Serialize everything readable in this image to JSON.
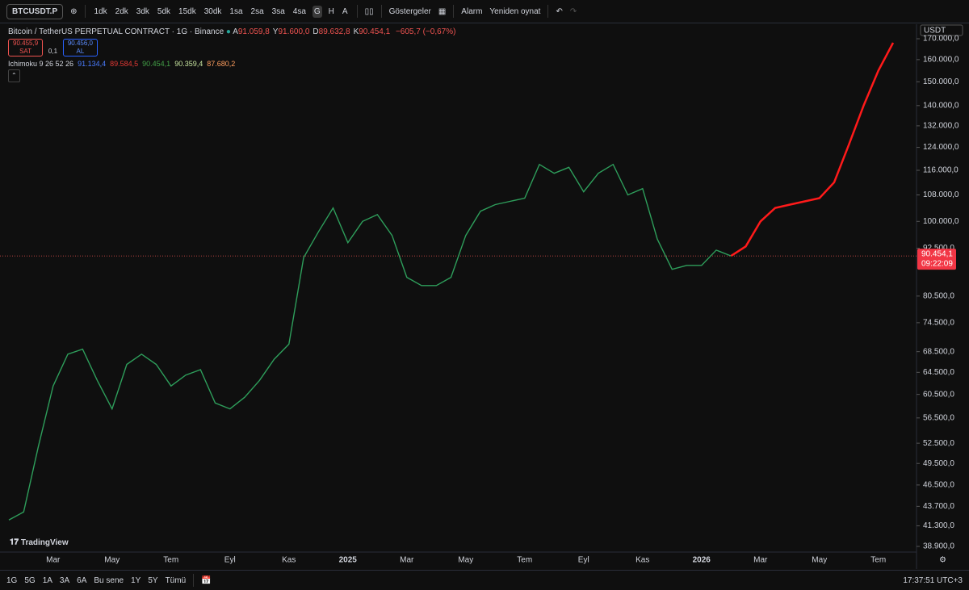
{
  "header": {
    "symbol": "BTCUSDT.P",
    "timeframes": [
      "1dk",
      "2dk",
      "3dk",
      "5dk",
      "15dk",
      "30dk",
      "1sa",
      "2sa",
      "3sa",
      "4sa",
      "G",
      "H",
      "A"
    ],
    "active_timeframe": "G",
    "indicators": "Göstergeler",
    "alarm": "Alarm",
    "replay": "Yeniden oynat"
  },
  "legend": {
    "title": "Bitcoin / TetherUS PERPETUAL CONTRACT · 1G · Binance",
    "ohlc": [
      {
        "label": "A",
        "value": "91.059,8"
      },
      {
        "label": "Y",
        "value": "91.600,0"
      },
      {
        "label": "D",
        "value": "89.632,8"
      },
      {
        "label": "K",
        "value": "90.454,1"
      }
    ],
    "change": "−605,7 (−0,67%)",
    "sell": {
      "price": "90.455,9",
      "label": "SAT"
    },
    "spread": "0,1",
    "buy": {
      "price": "90.456,0",
      "label": "AL"
    },
    "ichimoku": {
      "label": "Ichimoku 9 26 52 26",
      "values": [
        "91.134,4",
        "89.584,5",
        "90.454,1",
        "90.359,4",
        "87.680,2"
      ],
      "colors": [
        "#4a7cff",
        "#e53935",
        "#43a047",
        "#c8e6a0",
        "#ff9e5e"
      ]
    }
  },
  "price_axis": {
    "currency": "USDT",
    "last_price": "90.454,1",
    "countdown": "09:22:09"
  },
  "chart_data": {
    "type": "line",
    "log_scale": true,
    "grid": false,
    "ylim": [
      38900,
      170000
    ],
    "yticks": [
      {
        "value": 38900,
        "label": "38.900,0"
      },
      {
        "value": 41300,
        "label": "41.300,0"
      },
      {
        "value": 43700,
        "label": "43.700,0"
      },
      {
        "value": 46500,
        "label": "46.500,0"
      },
      {
        "value": 49500,
        "label": "49.500,0"
      },
      {
        "value": 52500,
        "label": "52.500,0"
      },
      {
        "value": 56500,
        "label": "56.500,0"
      },
      {
        "value": 60500,
        "label": "60.500,0"
      },
      {
        "value": 64500,
        "label": "64.500,0"
      },
      {
        "value": 68500,
        "label": "68.500,0"
      },
      {
        "value": 74500,
        "label": "74.500,0"
      },
      {
        "value": 80500,
        "label": "80.500,0"
      },
      {
        "value": 92500,
        "label": "92.500,0"
      },
      {
        "value": 100000,
        "label": "100.000,0"
      },
      {
        "value": 108000,
        "label": "108.000,0"
      },
      {
        "value": 116000,
        "label": "116.000,0"
      },
      {
        "value": 124000,
        "label": "124.000,0"
      },
      {
        "value": 132000,
        "label": "132.000,0"
      },
      {
        "value": 140000,
        "label": "140.000,0"
      },
      {
        "value": 150000,
        "label": "150.000,0"
      },
      {
        "value": 160000,
        "label": "160.000,0"
      },
      {
        "value": 170000,
        "label": "170.000,0"
      }
    ],
    "last_value": 90454.1,
    "categories": [
      null,
      null,
      null,
      "Mar",
      null,
      null,
      null,
      "May",
      null,
      null,
      null,
      "Tem",
      null,
      null,
      null,
      "Eyl",
      null,
      null,
      null,
      "Kas",
      null,
      null,
      null,
      "2025",
      null,
      null,
      null,
      "Mar",
      null,
      null,
      null,
      "May",
      null,
      null,
      null,
      "Tem",
      null,
      null,
      null,
      "Eyl",
      null,
      null,
      null,
      "Kas",
      null,
      null,
      null,
      "2026",
      null,
      null,
      null,
      "Mar",
      null,
      null,
      null,
      "May",
      null,
      null,
      null,
      "Tem",
      null
    ],
    "series": [
      {
        "color": "#2e9e5b",
        "values": [
          42000,
          43000,
          52000,
          62000,
          68000,
          69000,
          63000,
          58000,
          66000,
          68000,
          66000,
          62000,
          64000,
          65000,
          59000,
          58000,
          60000,
          63000,
          67000,
          70000,
          90000,
          97000,
          104000,
          94000,
          100000,
          102000,
          96000,
          85000,
          83000,
          83000,
          85000,
          96000,
          103000,
          105000,
          106000,
          107000,
          118000,
          115000,
          117000,
          109000,
          115000,
          118000,
          108000,
          110000,
          95000,
          87000,
          88000,
          88000,
          92000,
          90454,
          null,
          null,
          null,
          null,
          null,
          null,
          null,
          null,
          null,
          null,
          null
        ]
      },
      {
        "color": "#ff1a1a",
        "values": [
          null,
          null,
          null,
          null,
          null,
          null,
          null,
          null,
          null,
          null,
          null,
          null,
          null,
          null,
          null,
          null,
          null,
          null,
          null,
          null,
          null,
          null,
          null,
          null,
          null,
          null,
          null,
          null,
          null,
          null,
          null,
          null,
          null,
          null,
          null,
          null,
          null,
          null,
          null,
          null,
          null,
          null,
          null,
          null,
          null,
          null,
          null,
          null,
          null,
          90454,
          93000,
          100000,
          104000,
          105000,
          106000,
          107000,
          112000,
          125000,
          140000,
          155000,
          168000
        ]
      }
    ]
  },
  "bottom_bar": {
    "ranges": [
      "1G",
      "5G",
      "1A",
      "3A",
      "6A",
      "Bu sene",
      "1Y",
      "5Y",
      "Tümü"
    ],
    "clock": "17:37:51 UTC+3"
  },
  "logo": "TradingView"
}
